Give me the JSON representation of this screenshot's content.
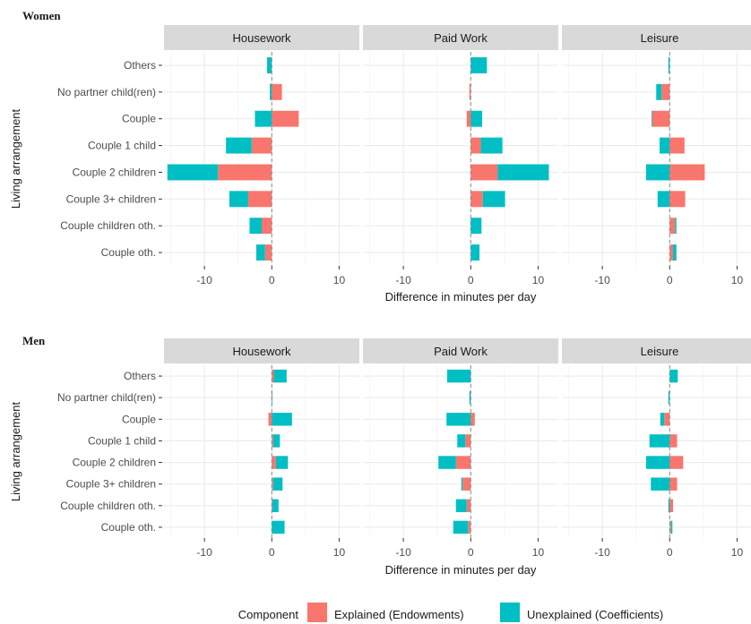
{
  "chart_data": {
    "type": "bar",
    "orientation": "horizontal",
    "stacked": true,
    "categories": [
      "Others",
      "No partner child(ren)",
      "Couple",
      "Couple 1 child",
      "Couple 2 children",
      "Couple 3+ children",
      "Couple children oth.",
      "Couple oth."
    ],
    "xlim": [
      -16,
      13
    ],
    "x_ticks": [
      -10,
      0,
      10
    ],
    "xlabel": "Difference in minutes per day",
    "ylabel": "Living arrangement",
    "grid": true,
    "reference_line": 0,
    "legend": {
      "title": "Component",
      "position": "bottom",
      "entries": [
        {
          "name": "Explained (Endowments)",
          "color": "#F8766D"
        },
        {
          "name": "Unexplained (Coefficients)",
          "color": "#00BFC4"
        }
      ]
    },
    "colors": {
      "explained": "#F8766D",
      "unexplained": "#00BFC4"
    },
    "panels": [
      "Housework",
      "Paid Work",
      "Leisure"
    ],
    "groups": [
      {
        "title": "Women",
        "facets": [
          {
            "panel": "Housework",
            "explained": [
              0,
              1.5,
              4.0,
              -3.0,
              -8.0,
              -3.5,
              -1.5,
              -1.0
            ],
            "unexplained": [
              -0.7,
              -0.3,
              -2.5,
              -3.8,
              -7.5,
              -2.8,
              -1.8,
              -1.3
            ]
          },
          {
            "panel": "Paid Work",
            "explained": [
              0,
              -0.2,
              -0.6,
              1.5,
              4.0,
              1.8,
              0,
              0
            ],
            "unexplained": [
              2.4,
              0,
              1.7,
              3.2,
              7.6,
              3.3,
              1.6,
              1.3
            ]
          },
          {
            "panel": "Leisure",
            "explained": [
              0,
              -1.2,
              -2.6,
              2.2,
              5.2,
              2.3,
              0.8,
              0.5
            ],
            "unexplained": [
              -0.2,
              -0.8,
              -0.1,
              -1.5,
              -3.5,
              -1.8,
              0.2,
              0.5
            ]
          }
        ]
      },
      {
        "title": "Men",
        "facets": [
          {
            "panel": "Housework",
            "explained": [
              0.3,
              0,
              -0.5,
              0.2,
              0.6,
              0.2,
              0.1,
              0
            ],
            "unexplained": [
              1.9,
              0.1,
              3.0,
              1.0,
              1.8,
              1.4,
              0.9,
              1.9
            ]
          },
          {
            "panel": "Paid Work",
            "explained": [
              0,
              0,
              0.6,
              -0.8,
              -2.2,
              -1.2,
              -0.6,
              -0.4
            ],
            "unexplained": [
              -3.5,
              -0.2,
              -3.6,
              -1.2,
              -2.6,
              -0.2,
              -1.6,
              -2.2
            ]
          },
          {
            "panel": "Leisure",
            "explained": [
              0,
              0,
              -0.8,
              1.1,
              2.0,
              1.1,
              0.5,
              0.2
            ],
            "unexplained": [
              1.2,
              -0.2,
              -0.6,
              -3.0,
              -3.5,
              -2.8,
              -0.2,
              0.2
            ]
          }
        ]
      }
    ]
  }
}
